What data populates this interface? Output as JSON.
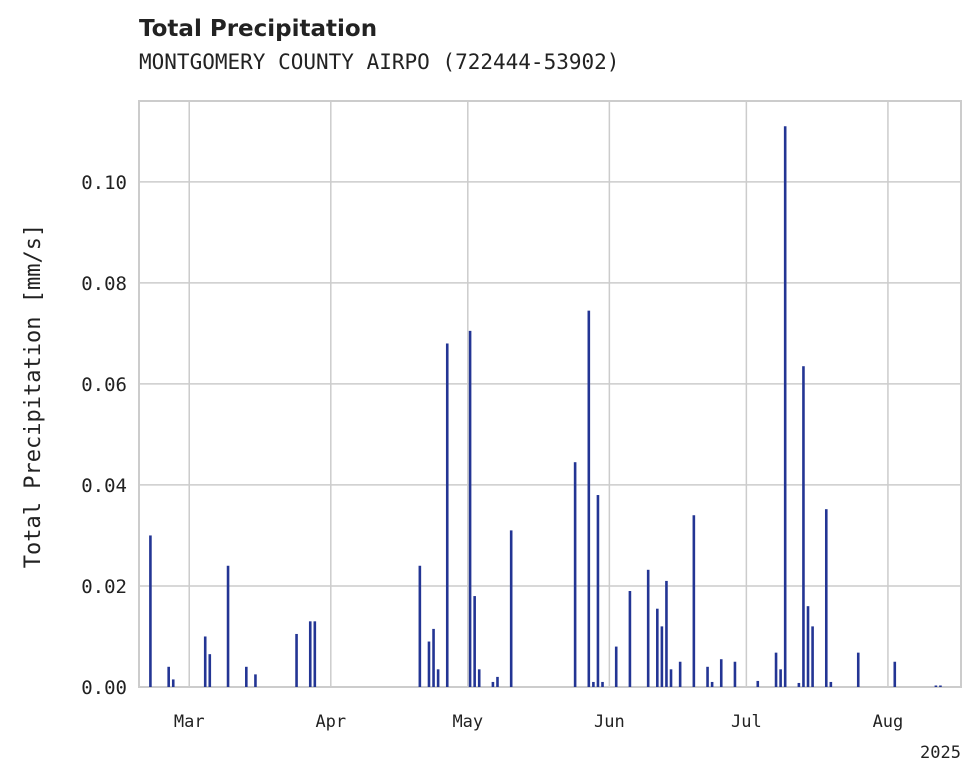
{
  "chart_data": {
    "type": "bar",
    "title": "Total Precipitation",
    "subtitle": "MONTGOMERY COUNTY AIRPO (722444-53902)",
    "ylabel": "Total Precipitation [mm/s]",
    "xlabel": "",
    "ylim": [
      0,
      0.116
    ],
    "y_ticks": [
      0.0,
      0.02,
      0.04,
      0.06,
      0.08,
      0.1
    ],
    "y_tick_labels": [
      "0.00",
      "0.02",
      "0.04",
      "0.06",
      "0.08",
      "0.10"
    ],
    "x_ticks": [
      {
        "date": "2025-03-01",
        "label": "Mar"
      },
      {
        "date": "2025-04-01",
        "label": "Apr"
      },
      {
        "date": "2025-05-01",
        "label": "May"
      },
      {
        "date": "2025-06-01",
        "label": "Jun"
      },
      {
        "date": "2025-07-01",
        "label": "Jul"
      },
      {
        "date": "2025-08-01",
        "label": "Aug"
      }
    ],
    "x_offset_label": "2025",
    "xlim": [
      "2025-02-18",
      "2025-08-17"
    ],
    "grid": true,
    "bar_color": "#233594",
    "x": [
      "2025-02-20",
      "2025-02-24",
      "2025-02-25",
      "2025-03-04",
      "2025-03-05",
      "2025-03-09",
      "2025-03-13",
      "2025-03-15",
      "2025-03-24",
      "2025-03-27",
      "2025-03-28",
      "2025-04-20",
      "2025-04-22",
      "2025-04-23",
      "2025-04-24",
      "2025-04-26",
      "2025-05-01",
      "2025-05-02",
      "2025-05-03",
      "2025-05-06",
      "2025-05-07",
      "2025-05-10",
      "2025-05-24",
      "2025-05-27",
      "2025-05-28",
      "2025-05-29",
      "2025-05-30",
      "2025-06-02",
      "2025-06-05",
      "2025-06-09",
      "2025-06-11",
      "2025-06-12",
      "2025-06-13",
      "2025-06-14",
      "2025-06-16",
      "2025-06-19",
      "2025-06-22",
      "2025-06-23",
      "2025-06-25",
      "2025-06-28",
      "2025-07-03",
      "2025-07-07",
      "2025-07-08",
      "2025-07-09",
      "2025-07-12",
      "2025-07-13",
      "2025-07-14",
      "2025-07-15",
      "2025-07-18",
      "2025-07-19",
      "2025-07-25",
      "2025-08-02",
      "2025-08-11",
      "2025-08-12"
    ],
    "values": [
      0.03,
      0.004,
      0.0015,
      0.01,
      0.0065,
      0.024,
      0.004,
      0.0025,
      0.0105,
      0.013,
      0.013,
      0.024,
      0.009,
      0.0115,
      0.0035,
      0.068,
      0.0705,
      0.018,
      0.0035,
      0.001,
      0.002,
      0.031,
      0.0445,
      0.0745,
      0.001,
      0.038,
      0.001,
      0.008,
      0.019,
      0.0232,
      0.0155,
      0.012,
      0.021,
      0.0035,
      0.005,
      0.034,
      0.004,
      0.001,
      0.0055,
      0.005,
      0.0012,
      0.0068,
      0.0035,
      0.111,
      0.0008,
      0.0635,
      0.016,
      0.012,
      0.0352,
      0.001,
      0.0068,
      0.005,
      0.0,
      0.0
    ]
  }
}
